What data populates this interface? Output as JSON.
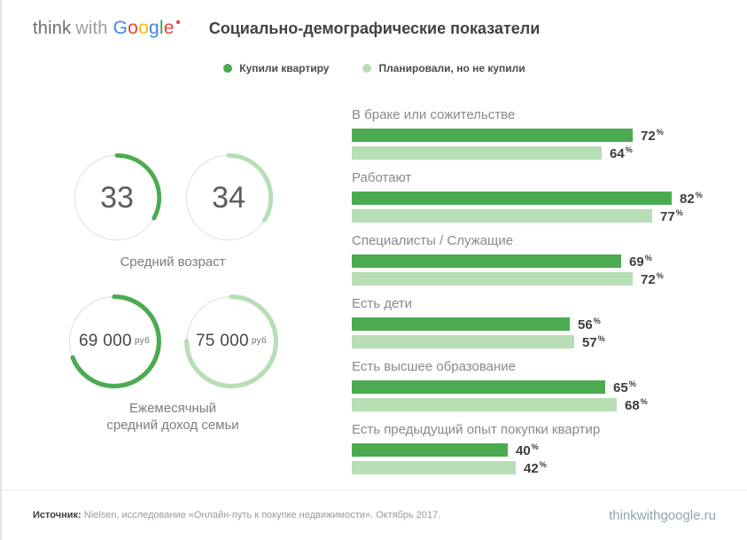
{
  "brand": {
    "think": "think",
    "with": "with",
    "google_letters": [
      {
        "ch": "G",
        "color": "#4285F4"
      },
      {
        "ch": "o",
        "color": "#EA4335"
      },
      {
        "ch": "o",
        "color": "#FBBC05"
      },
      {
        "ch": "g",
        "color": "#4285F4"
      },
      {
        "ch": "l",
        "color": "#34A853"
      },
      {
        "ch": "e",
        "color": "#EA4335"
      }
    ],
    "mark_color": "#EA4335"
  },
  "header": {
    "title": "Социально-демографические показатели"
  },
  "chart_data": [
    {
      "type": "bar",
      "orientation": "horizontal",
      "title": "Социально-демографические показатели",
      "unit": "%",
      "xlim": [
        0,
        100
      ],
      "grid": false,
      "legend_position": "top",
      "categories": [
        "В браке или сожительстве",
        "Работают",
        "Специалисты / Служащие",
        "Есть дети",
        "Есть высшее образование",
        "Есть предыдущий опыт покупки квартир"
      ],
      "series": [
        {
          "name": "Купили квартиру",
          "color": "#4CAB50",
          "values": [
            72,
            82,
            69,
            56,
            65,
            40
          ]
        },
        {
          "name": "Планировали, но не купили",
          "color": "#B7DEB4",
          "values": [
            64,
            77,
            72,
            57,
            68,
            42
          ]
        }
      ]
    },
    {
      "type": "gauge",
      "groups": [
        {
          "caption_lines": [
            "Средний возраст"
          ],
          "items": [
            {
              "label": "33",
              "unit": "",
              "pct": 33,
              "color": "#4CAB50"
            },
            {
              "label": "34",
              "unit": "",
              "pct": 34,
              "color": "#B7DEB4"
            }
          ]
        },
        {
          "caption_lines": [
            "Ежемесячный",
            "средний доход семьи"
          ],
          "items": [
            {
              "label": "69 000",
              "unit": "руб",
              "pct": 69,
              "color": "#4CAB50"
            },
            {
              "label": "75 000",
              "unit": "руб",
              "pct": 75,
              "color": "#B7DEB4"
            }
          ]
        }
      ]
    }
  ],
  "footer": {
    "source_label": "Источник:",
    "source_text": "Nielsen, исследование «Онлайн-путь к покупке недвижимости». Октябрь 2017.",
    "site": "thinkwithgoogle.ru"
  }
}
